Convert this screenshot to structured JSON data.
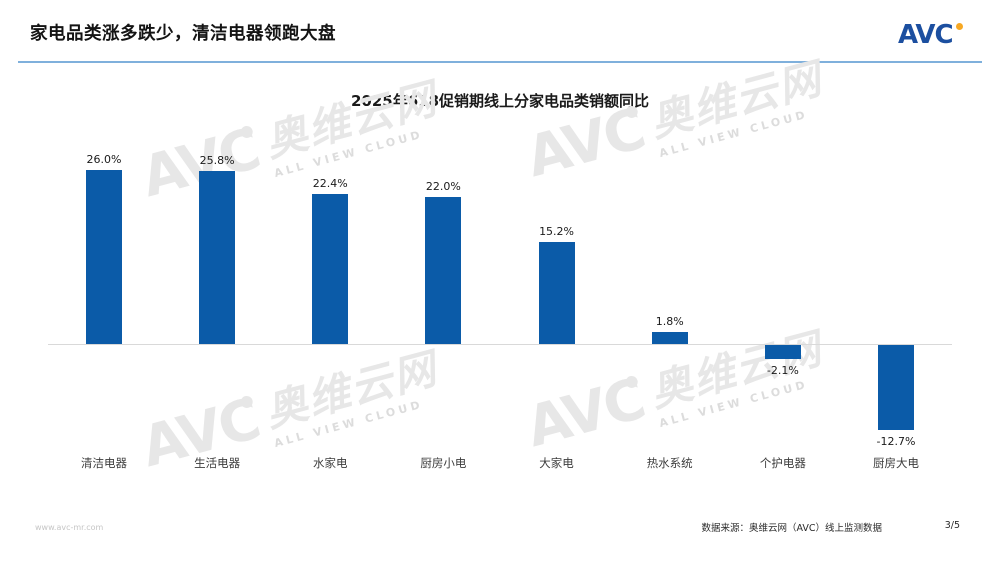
{
  "header": {
    "title": "家电品类涨多跌少，清洁电器领跑大盘",
    "logo_text": "AVC"
  },
  "chart_data": {
    "type": "bar",
    "title": "2025年618促销期线上分家电品类销额同比",
    "categories": [
      "清洁电器",
      "生活电器",
      "水家电",
      "厨房小电",
      "大家电",
      "热水系统",
      "个护电器",
      "厨房大电"
    ],
    "values": [
      26.0,
      25.8,
      22.4,
      22.0,
      15.2,
      1.8,
      -2.1,
      -12.7
    ],
    "value_labels": [
      "26.0%",
      "25.8%",
      "22.4%",
      "22.0%",
      "15.2%",
      "1.8%",
      "-2.1%",
      "-12.7%"
    ],
    "unit": "%",
    "xlabel": "",
    "ylabel": "",
    "ylim": [
      -15,
      30
    ],
    "grid": false,
    "legend": false,
    "bar_color": "#0B5BA8"
  },
  "watermark": {
    "logo": "AVC",
    "cn": "奥维云网",
    "en": "ALL VIEW CLOUD"
  },
  "footer": {
    "website": "www.avc-mr.com",
    "source": "数据来源：奥维云网（AVC）线上监测数据",
    "page": "3/5"
  },
  "colors": {
    "bar": "#0B5BA8",
    "accent_line": "#7FB0DC",
    "logo_blue": "#1C4FA0",
    "logo_dot": "#F7A823",
    "watermark_gray": "#e7e7e7",
    "watermark_gray_dark": "#dcdcdc"
  }
}
